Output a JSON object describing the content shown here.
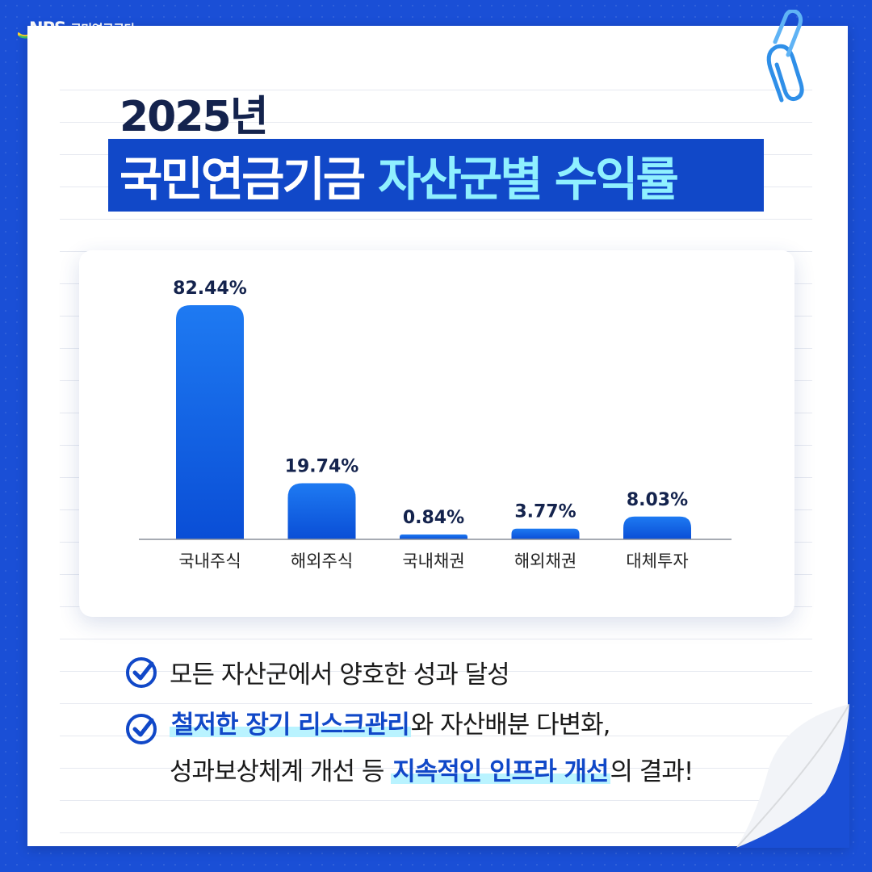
{
  "logo": {
    "mark": "NPS",
    "name": "국민연금공단"
  },
  "header": {
    "year": "2025년",
    "title_part1": "국민연금기금",
    "title_part2": "자산군별 수익률"
  },
  "chart_data": {
    "type": "bar",
    "categories": [
      "국내주식",
      "해외주식",
      "국내채권",
      "해외채권",
      "대체투자"
    ],
    "values": [
      82.44,
      19.74,
      0.84,
      3.77,
      8.03
    ],
    "value_labels": [
      "82.44%",
      "19.74%",
      "0.84%",
      "3.77%",
      "8.03%"
    ],
    "title": "",
    "xlabel": "",
    "ylabel": "",
    "ylim": [
      0,
      82.44
    ],
    "grid": false,
    "colors": {
      "bar_top": "#1e78f0",
      "bar_bottom": "#0a4fd8",
      "label": "#14234d",
      "axis": "#8a8f9a"
    }
  },
  "bullets": [
    {
      "segments": [
        {
          "text": "모든 자산군에서 양호한 성과 달성",
          "highlight": false
        }
      ]
    },
    {
      "line1": [
        {
          "text": "철저한 장기 리스크관리",
          "highlight": true
        },
        {
          "text": "와 자산배분 다변화,",
          "highlight": false
        }
      ],
      "line2": [
        {
          "text": "성과보상체계 개선 등 ",
          "highlight": false
        },
        {
          "text": "지속적인 인프라 개선",
          "highlight": true
        },
        {
          "text": "의 결과!",
          "highlight": false
        }
      ]
    }
  ],
  "icons": {
    "check": "check-circle-icon",
    "clip": "paperclip-icon"
  },
  "colors": {
    "background": "#1a4fd6",
    "accent": "#1148c8",
    "highlight": "#b9f3ff",
    "title_cyan": "#8ff0ff"
  }
}
